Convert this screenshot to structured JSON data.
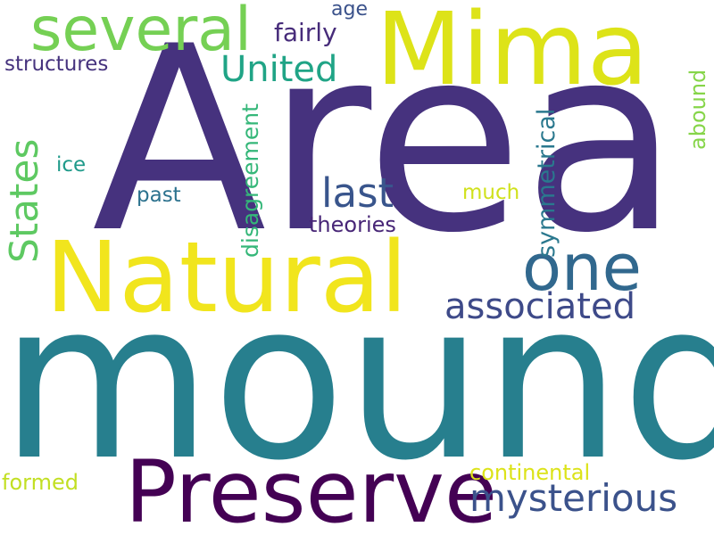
{
  "word_cloud": {
    "background_color": "#ffffff",
    "words": {
      "area": {
        "text": "Area",
        "color": "#46327e",
        "orientation": "horizontal"
      },
      "mound": {
        "text": "mound",
        "color": "#277f8e",
        "orientation": "horizontal"
      },
      "mima": {
        "text": "Mima",
        "color": "#dde318",
        "orientation": "horizontal"
      },
      "natural": {
        "text": "Natural",
        "color": "#f1e51d",
        "orientation": "horizontal"
      },
      "preserve": {
        "text": "Preserve",
        "color": "#440154",
        "orientation": "horizontal"
      },
      "several": {
        "text": "several",
        "color": "#75d054",
        "orientation": "horizontal"
      },
      "one": {
        "text": "one",
        "color": "#31688e",
        "orientation": "horizontal"
      },
      "associated": {
        "text": "associated",
        "color": "#3e4a89",
        "orientation": "horizontal"
      },
      "mysterious": {
        "text": "mysterious",
        "color": "#3b528b",
        "orientation": "horizontal"
      },
      "united": {
        "text": "United",
        "color": "#20a486",
        "orientation": "horizontal"
      },
      "states": {
        "text": "States",
        "color": "#5ec962",
        "orientation": "vertical"
      },
      "last": {
        "text": "last",
        "color": "#39558c",
        "orientation": "horizontal"
      },
      "fairly": {
        "text": "fairly",
        "color": "#472c7a",
        "orientation": "horizontal"
      },
      "structures": {
        "text": "structures",
        "color": "#46337e",
        "orientation": "horizontal"
      },
      "age": {
        "text": "age",
        "color": "#3b528b",
        "orientation": "horizontal"
      },
      "theories": {
        "text": "theories",
        "color": "#482677",
        "orientation": "horizontal"
      },
      "disagreement": {
        "text": "disagreement",
        "color": "#35b779",
        "orientation": "vertical"
      },
      "symmetrical": {
        "text": "symmetrical",
        "color": "#2a788e",
        "orientation": "vertical"
      },
      "abound": {
        "text": "abound",
        "color": "#86d549",
        "orientation": "vertical"
      },
      "continental": {
        "text": "continental",
        "color": "#dce319",
        "orientation": "horizontal"
      },
      "formed": {
        "text": "formed",
        "color": "#c2df23",
        "orientation": "horizontal"
      },
      "ice": {
        "text": "ice",
        "color": "#1f9a8a",
        "orientation": "horizontal"
      },
      "past": {
        "text": "past",
        "color": "#2c728e",
        "orientation": "horizontal"
      },
      "much": {
        "text": "much",
        "color": "#d0e11c",
        "orientation": "horizontal"
      }
    }
  }
}
